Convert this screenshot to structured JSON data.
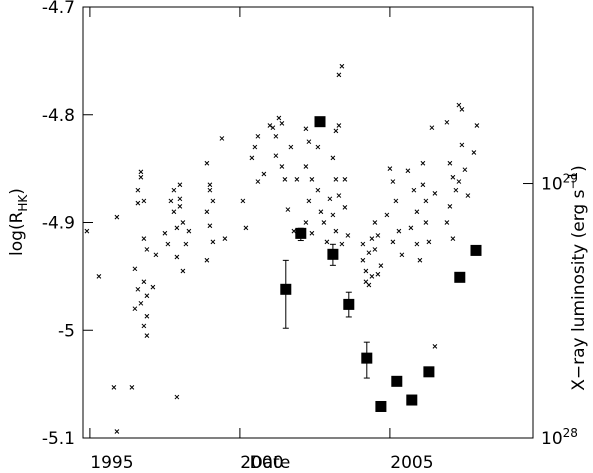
{
  "chart_data": {
    "type": "scatter",
    "x_label": "Date",
    "y_label": "log(R_{HK})",
    "y2_label": "X−ray luminosity (erg s^{−1})",
    "xlim": [
      1994.77,
      2009.77
    ],
    "xticks": [
      1995,
      2000,
      2005
    ],
    "ylim": [
      -5.1,
      -4.7
    ],
    "yticks": [
      -5.1,
      -5,
      -4.9,
      -4.8,
      -4.7
    ],
    "y2lim": [
      1e+28,
      4.94e+29
    ],
    "y2scale": "log",
    "y2ticks": [
      {
        "value": 1e+28,
        "label": "10^{28}"
      },
      {
        "value": 1e+29,
        "label": "10^{29}"
      }
    ],
    "color": "#000000",
    "series": [
      {
        "marker": "cross",
        "x": [
          1994.9,
          1995.3,
          1995.9,
          1995.8,
          1995.9,
          1996.4,
          1996.7,
          1996.7,
          1996.6,
          1996.8,
          1996.6,
          1996.8,
          1996.9,
          1996.5,
          1996.8,
          1996.6,
          1996.9,
          1996.7,
          1996.5,
          1996.9,
          1996.8,
          1996.9,
          1997.1,
          1997.2,
          1997.5,
          1997.6,
          1997.7,
          1997.8,
          1997.9,
          1997.8,
          1998.0,
          1998.0,
          1998.1,
          1998.2,
          1997.9,
          1998.1,
          1998.3,
          1998.0,
          1997.9,
          1998.9,
          1999.0,
          1999.1,
          1998.9,
          1999.0,
          1999.1,
          1998.9,
          1999.0,
          1999.4,
          1999.5,
          2000.1,
          2000.2,
          2000.5,
          2000.6,
          2000.4,
          2000.6,
          2000.8,
          2001.0,
          2001.1,
          2001.3,
          2001.2,
          2001.4,
          2001.2,
          2001.4,
          2001.5,
          2001.6,
          2001.7,
          2001.8,
          2001.9,
          2002.2,
          2002.3,
          2002.2,
          2002.4,
          2002.3,
          2002.2,
          2002.4,
          2002.6,
          2002.7,
          2002.8,
          2002.6,
          2002.9,
          2003.2,
          2003.3,
          2003.1,
          2003.2,
          2003.3,
          2003.1,
          2003.2,
          2003.4,
          2003.3,
          2003.4,
          2003.5,
          2003.5,
          2003.6,
          2003.0,
          2004.1,
          2004.1,
          2004.2,
          2004.3,
          2004.4,
          2004.2,
          2004.5,
          2004.6,
          2004.5,
          2004.7,
          2004.6,
          2004.3,
          2004.4,
          2005.0,
          2005.1,
          2005.2,
          2004.9,
          2005.3,
          2005.1,
          2005.4,
          2005.6,
          2005.8,
          2005.9,
          2005.7,
          2005.9,
          2006.0,
          2006.1,
          2006.2,
          2006.4,
          2006.5,
          2006.3,
          2006.1,
          2006.5,
          2006.2,
          2006.9,
          2007.0,
          2007.1,
          2007.2,
          2007.0,
          2006.9,
          2007.1,
          2007.3,
          2007.4,
          2007.4,
          2007.5,
          2007.3,
          2007.9,
          2007.8,
          2007.6
        ],
        "values": [
          -4.908,
          -4.95,
          -4.895,
          -5.053,
          -5.094,
          -5.053,
          -4.853,
          -4.858,
          -4.87,
          -4.88,
          -4.882,
          -4.915,
          -4.925,
          -4.943,
          -4.955,
          -4.962,
          -4.968,
          -4.975,
          -4.98,
          -4.987,
          -4.996,
          -5.005,
          -4.96,
          -4.93,
          -4.91,
          -4.92,
          -4.88,
          -4.89,
          -4.905,
          -4.87,
          -4.865,
          -4.885,
          -4.9,
          -4.92,
          -4.932,
          -4.945,
          -4.908,
          -4.878,
          -5.062,
          -4.845,
          -4.87,
          -4.88,
          -4.89,
          -4.903,
          -4.918,
          -4.935,
          -4.865,
          -4.822,
          -4.915,
          -4.88,
          -4.905,
          -4.83,
          -4.82,
          -4.84,
          -4.862,
          -4.855,
          -4.81,
          -4.812,
          -4.803,
          -4.82,
          -4.808,
          -4.838,
          -4.848,
          -4.86,
          -4.888,
          -4.83,
          -4.908,
          -4.86,
          -4.813,
          -4.825,
          -4.848,
          -4.86,
          -4.88,
          -4.9,
          -4.91,
          -4.87,
          -4.89,
          -4.9,
          -4.83,
          -4.918,
          -4.815,
          -4.81,
          -4.84,
          -4.86,
          -4.875,
          -4.893,
          -4.908,
          -4.92,
          -4.763,
          -4.755,
          -4.86,
          -4.886,
          -4.912,
          -4.878,
          -4.92,
          -4.935,
          -4.945,
          -4.928,
          -4.95,
          -4.955,
          -4.9,
          -4.912,
          -4.925,
          -4.94,
          -4.948,
          -4.958,
          -4.915,
          -4.85,
          -4.862,
          -4.88,
          -4.893,
          -4.908,
          -4.918,
          -4.93,
          -4.852,
          -4.87,
          -4.89,
          -4.905,
          -4.92,
          -4.935,
          -4.845,
          -4.9,
          -4.812,
          -4.873,
          -4.918,
          -4.865,
          -5.015,
          -4.88,
          -4.807,
          -4.845,
          -4.858,
          -4.87,
          -4.885,
          -4.9,
          -4.915,
          -4.791,
          -4.795,
          -4.828,
          -4.851,
          -4.862,
          -4.81,
          -4.835,
          -4.875
        ]
      },
      {
        "marker": "square",
        "axis": "y2",
        "x": [
          2001.53,
          2002.03,
          2002.67,
          2003.1,
          2003.63,
          2004.23,
          2004.7,
          2005.23,
          2005.73,
          2006.3,
          2007.33,
          2007.87
        ],
        "values": [
          3.84e+28,
          6.37e+28,
          1.75e+29,
          5.27e+28,
          3.35e+28,
          2.06e+28,
          1.33e+28,
          1.67e+28,
          1.41e+28,
          1.82e+28,
          4.28e+28,
          5.46e+28
        ],
        "lower": [
          2.7e+28,
          5.97e+28,
          null,
          4.77e+28,
          2.99e+28,
          1.72e+28,
          null,
          null,
          null,
          null,
          null,
          null
        ],
        "upper": [
          4.99e+28,
          6.67e+28,
          null,
          5.77e+28,
          3.74e+28,
          2.38e+28,
          null,
          null,
          null,
          null,
          null,
          null
        ]
      }
    ]
  }
}
